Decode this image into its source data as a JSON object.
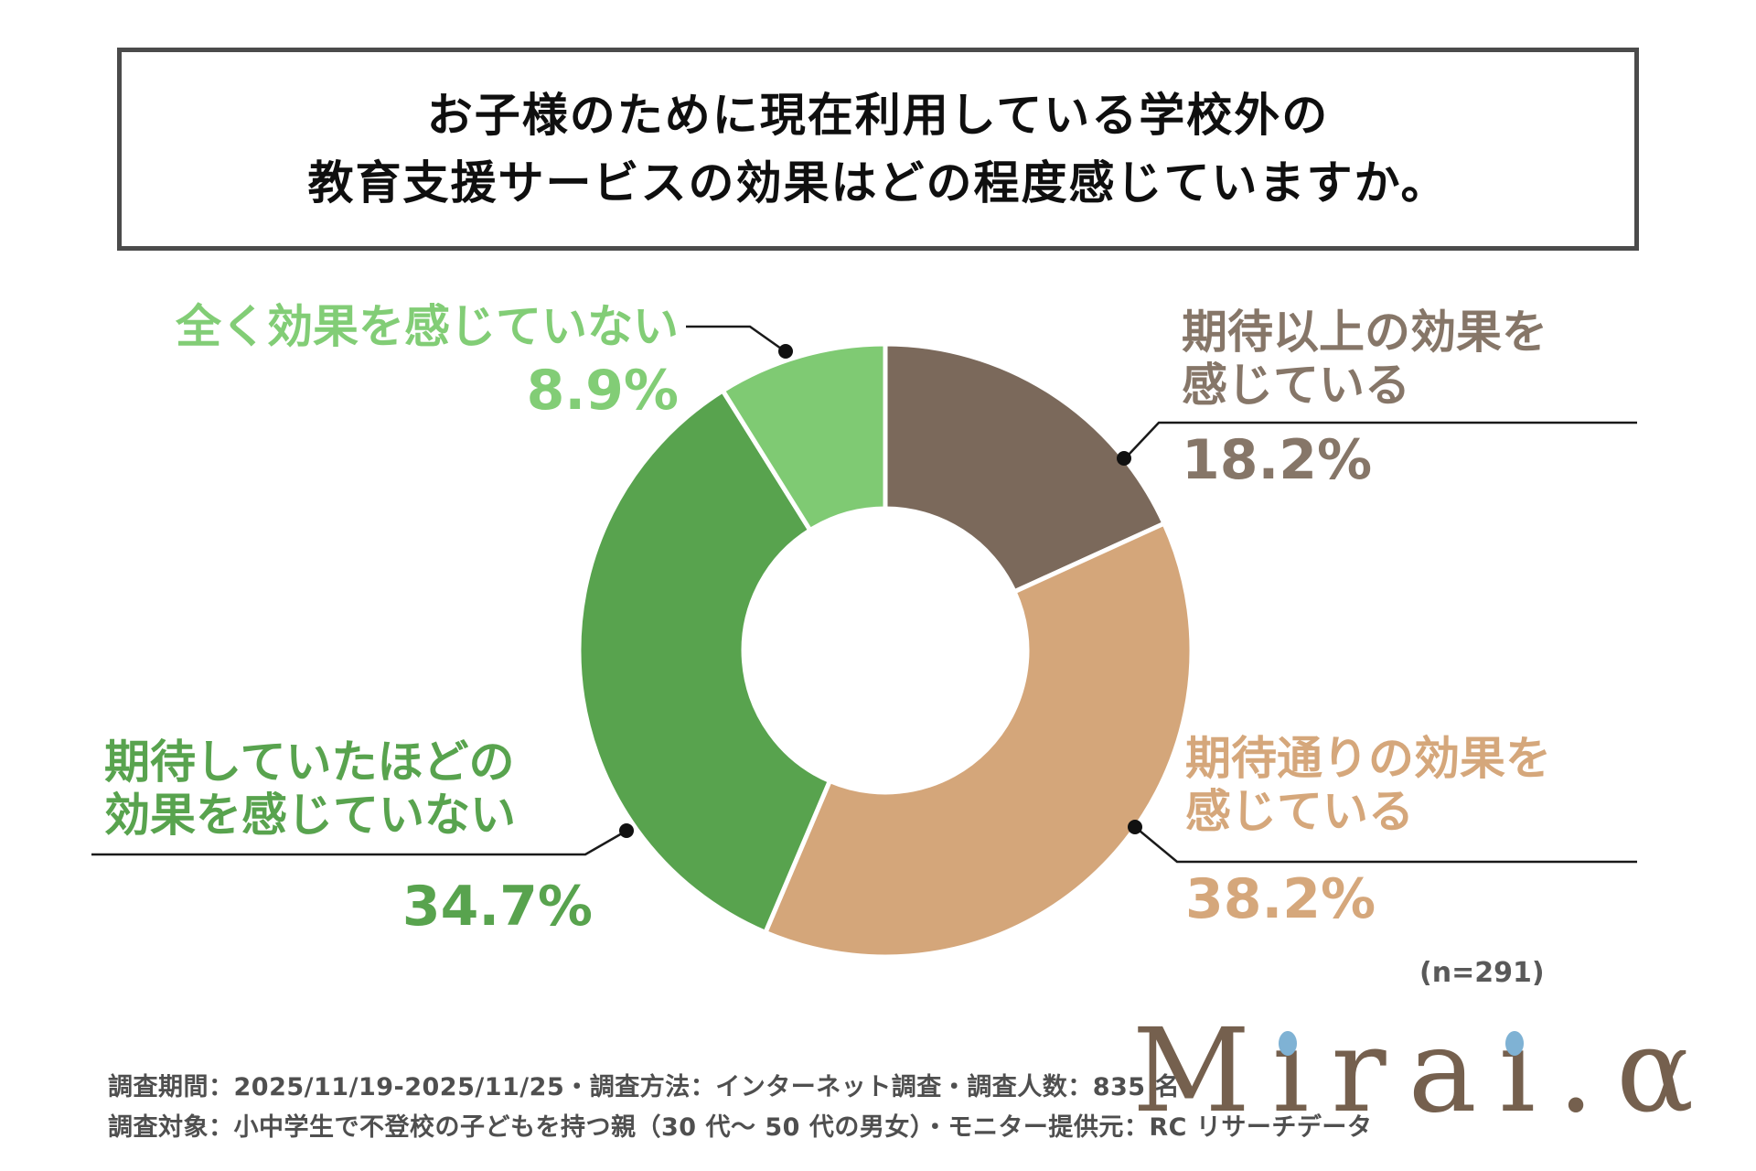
{
  "header": {
    "line1": "お子様のために現在利用している学校外の",
    "line2": "教育支援サービスの効果はどの程度感じていますか。"
  },
  "chart_data": {
    "type": "donut",
    "title": "お子様のために現在利用している学校外の教育支援サービスの効果はどの程度感じていますか。",
    "unit": "%",
    "sample_size": 291,
    "start_angle_deg": 0,
    "direction": "clockwise",
    "legend_position": "callout-labels",
    "series": [
      {
        "label": "期待以上の効果を感じている",
        "value": 18.2,
        "color": "#7b695b"
      },
      {
        "label": "期待通りの効果を感じている",
        "value": 38.2,
        "color": "#d4a67a"
      },
      {
        "label": "期待していたほどの効果を感じていない",
        "value": 34.7,
        "color": "#58a34e"
      },
      {
        "label": "全く効果を感じていない",
        "value": 8.9,
        "color": "#7fca73"
      }
    ]
  },
  "labels": {
    "top_left": {
      "line1": "全く効果を感じていない",
      "pct": "8.9%",
      "color": "#82cd76"
    },
    "top_right": {
      "line1": "期待以上の効果を",
      "line2": "感じている",
      "pct": "18.2%",
      "color": "#867668"
    },
    "bottom_right": {
      "line1": "期待通りの効果を",
      "line2": "感じている",
      "pct": "38.2%",
      "color": "#d5a77b"
    },
    "bottom_left": {
      "line1": "期待していたほどの",
      "line2": "効果を感じていない",
      "pct": "34.7%",
      "color": "#58a34e"
    }
  },
  "sample_note": "(n=291)",
  "footer": {
    "line1": "調査期間：2025/11/19-2025/11/25・調査方法：インターネット調査・調査人数：835 名",
    "line2": "調査対象：小中学生で不登校の子どもを持つ親（30 代〜 50 代の男女）・モニター提供元：RC リサーチデータ"
  },
  "logo": {
    "text": "Mirai.α",
    "color": "#75604e",
    "dot_color": "#7fb2d4"
  }
}
